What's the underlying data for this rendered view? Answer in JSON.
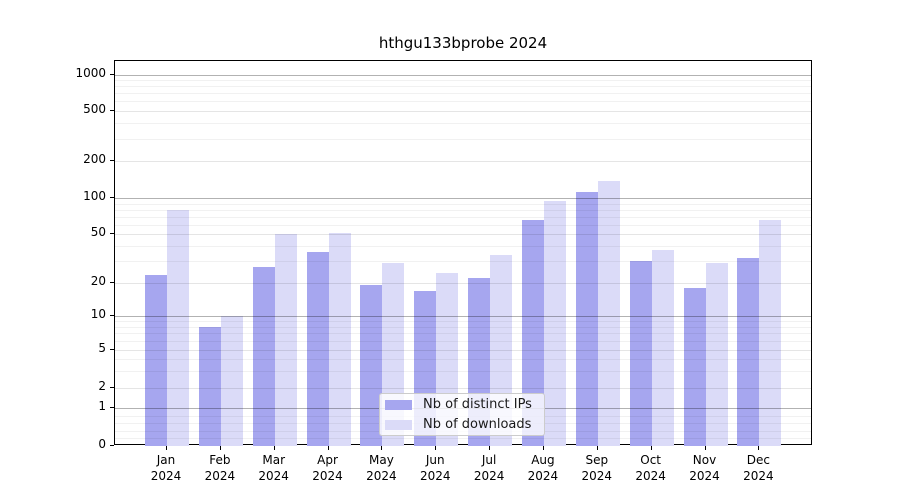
{
  "title": "hthgu133bprobe 2024",
  "chart_data": {
    "type": "bar",
    "title": "hthgu133bprobe 2024",
    "categories": [
      "Jan 2024",
      "Feb 2024",
      "Mar 2024",
      "Apr 2024",
      "May 2024",
      "Jun 2024",
      "Jul 2024",
      "Aug 2024",
      "Sep 2024",
      "Oct 2024",
      "Nov 2024",
      "Dec 2024"
    ],
    "series": [
      {
        "name": "Nb of distinct IPs",
        "color": "#a6a6ef",
        "values": [
          23,
          8,
          27,
          36,
          19,
          17,
          22,
          66,
          113,
          30,
          18,
          32
        ]
      },
      {
        "name": "Nb of downloads",
        "color": "#dbdbf8",
        "values": [
          80,
          10,
          50,
          51,
          29,
          24,
          34,
          95,
          138,
          37,
          29,
          66
        ]
      }
    ],
    "yscale": "symlog",
    "yticks": [
      0,
      1,
      2,
      5,
      10,
      20,
      50,
      100,
      200,
      500,
      1000
    ],
    "ylim": [
      0,
      1285
    ],
    "grid": "minor and major gridlines drawn above bars",
    "legend_position": "lower center",
    "axis_color": "#000000",
    "major_grid_values": [
      1,
      10,
      100,
      1000
    ]
  },
  "legend": {
    "items": [
      {
        "label": "Nb of distinct IPs"
      },
      {
        "label": "Nb of downloads"
      }
    ]
  }
}
